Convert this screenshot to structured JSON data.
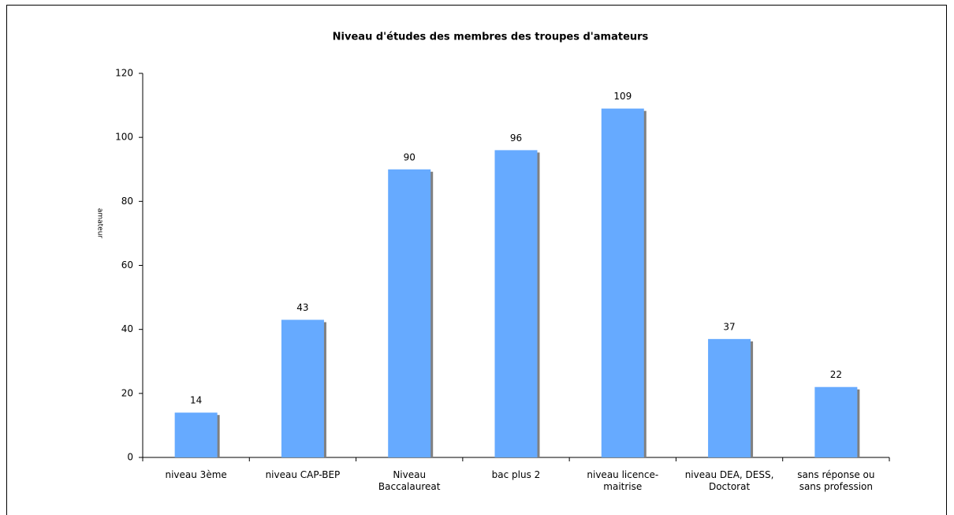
{
  "chart_data": {
    "type": "bar",
    "title": "Niveau d'études des membres des  troupes  d'amateurs",
    "y_label": "amateur",
    "categories": [
      "niveau 3ème",
      "niveau CAP-BEP",
      "Niveau Baccalaureat",
      "bac plus 2",
      "niveau licence-maitrise",
      "niveau DEA, DESS, Doctorat",
      "sans réponse ou sans profession"
    ],
    "values": [
      14,
      43,
      90,
      96,
      109,
      37,
      22
    ],
    "color": "#66aaff",
    "ylim": [
      0,
      120
    ],
    "yticks": [
      0,
      20,
      40,
      60,
      80,
      100,
      120
    ],
    "grid": false
  }
}
